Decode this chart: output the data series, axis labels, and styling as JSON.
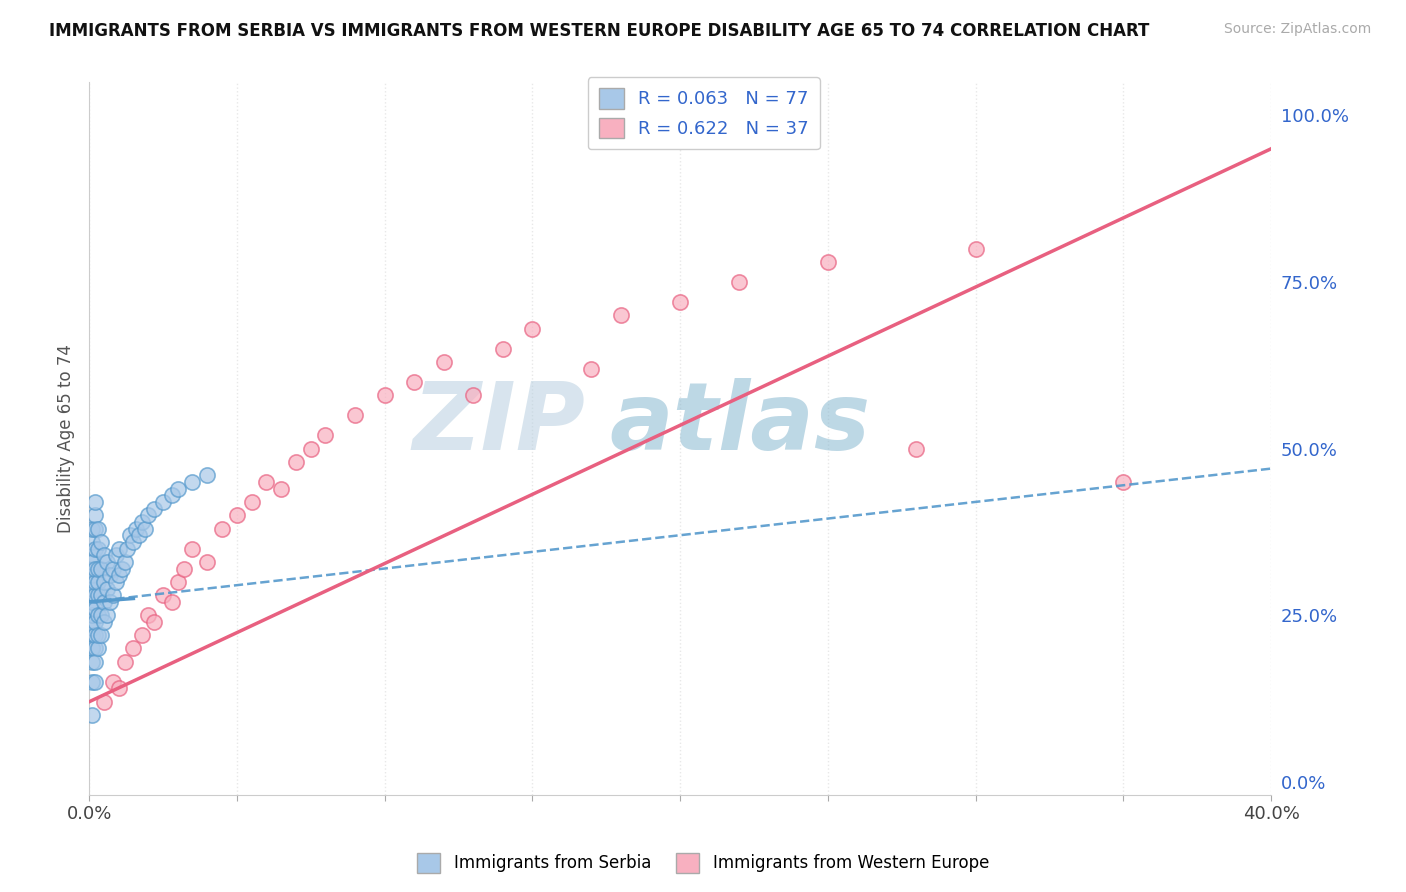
{
  "title": "IMMIGRANTS FROM SERBIA VS IMMIGRANTS FROM WESTERN EUROPE DISABILITY AGE 65 TO 74 CORRELATION CHART",
  "source": "Source: ZipAtlas.com",
  "ylabel": "Disability Age 65 to 74",
  "ylabel_right_ticks": [
    0.0,
    0.25,
    0.5,
    0.75,
    1.0
  ],
  "ylabel_right_labels": [
    "0.0%",
    "25.0%",
    "50.0%",
    "75.0%",
    "100.0%"
  ],
  "serbia_R": 0.063,
  "serbia_N": 77,
  "western_R": 0.622,
  "western_N": 37,
  "serbia_color": "#a8c8e8",
  "western_color": "#f8b0c0",
  "serbia_line_color": "#5599cc",
  "western_line_color": "#e86080",
  "legend_text_color": "#3366cc",
  "watermark_text": "ZIPatlas",
  "watermark_color_zip": "#b0c8e0",
  "watermark_color_atlas": "#80b0d0",
  "background_color": "#ffffff",
  "grid_color": "#e8e8e8",
  "serbia_x": [
    0.001,
    0.001,
    0.001,
    0.001,
    0.001,
    0.001,
    0.001,
    0.001,
    0.001,
    0.001,
    0.001,
    0.001,
    0.001,
    0.001,
    0.001,
    0.001,
    0.001,
    0.001,
    0.001,
    0.001,
    0.002,
    0.002,
    0.002,
    0.002,
    0.002,
    0.002,
    0.002,
    0.002,
    0.002,
    0.002,
    0.002,
    0.002,
    0.002,
    0.003,
    0.003,
    0.003,
    0.003,
    0.003,
    0.003,
    0.003,
    0.003,
    0.004,
    0.004,
    0.004,
    0.004,
    0.004,
    0.005,
    0.005,
    0.005,
    0.005,
    0.006,
    0.006,
    0.006,
    0.007,
    0.007,
    0.008,
    0.008,
    0.009,
    0.009,
    0.01,
    0.01,
    0.011,
    0.012,
    0.013,
    0.014,
    0.015,
    0.016,
    0.017,
    0.018,
    0.019,
    0.02,
    0.022,
    0.025,
    0.028,
    0.03,
    0.035,
    0.04
  ],
  "serbia_y": [
    0.2,
    0.22,
    0.24,
    0.26,
    0.28,
    0.3,
    0.32,
    0.34,
    0.36,
    0.38,
    0.15,
    0.18,
    0.2,
    0.23,
    0.25,
    0.27,
    0.29,
    0.31,
    0.33,
    0.1,
    0.2,
    0.22,
    0.24,
    0.26,
    0.28,
    0.3,
    0.32,
    0.35,
    0.38,
    0.4,
    0.15,
    0.18,
    0.42,
    0.2,
    0.22,
    0.25,
    0.28,
    0.3,
    0.32,
    0.35,
    0.38,
    0.22,
    0.25,
    0.28,
    0.32,
    0.36,
    0.24,
    0.27,
    0.3,
    0.34,
    0.25,
    0.29,
    0.33,
    0.27,
    0.31,
    0.28,
    0.32,
    0.3,
    0.34,
    0.31,
    0.35,
    0.32,
    0.33,
    0.35,
    0.37,
    0.36,
    0.38,
    0.37,
    0.39,
    0.38,
    0.4,
    0.41,
    0.42,
    0.43,
    0.44,
    0.45,
    0.46
  ],
  "western_x": [
    0.005,
    0.008,
    0.01,
    0.012,
    0.015,
    0.018,
    0.02,
    0.022,
    0.025,
    0.028,
    0.03,
    0.032,
    0.035,
    0.04,
    0.045,
    0.05,
    0.055,
    0.06,
    0.065,
    0.07,
    0.075,
    0.08,
    0.09,
    0.1,
    0.11,
    0.12,
    0.13,
    0.14,
    0.15,
    0.17,
    0.18,
    0.2,
    0.22,
    0.25,
    0.28,
    0.3,
    0.35
  ],
  "western_y": [
    0.12,
    0.15,
    0.14,
    0.18,
    0.2,
    0.22,
    0.25,
    0.24,
    0.28,
    0.27,
    0.3,
    0.32,
    0.35,
    0.33,
    0.38,
    0.4,
    0.42,
    0.45,
    0.44,
    0.48,
    0.5,
    0.52,
    0.55,
    0.58,
    0.6,
    0.63,
    0.58,
    0.65,
    0.68,
    0.62,
    0.7,
    0.72,
    0.75,
    0.78,
    0.5,
    0.8,
    0.45
  ],
  "xlim": [
    0.0,
    0.4
  ],
  "ylim": [
    -0.02,
    1.05
  ],
  "xtick_positions": [
    0.0,
    0.05,
    0.1,
    0.15,
    0.2,
    0.25,
    0.3,
    0.35,
    0.4
  ],
  "figsize": [
    14.06,
    8.92
  ],
  "dpi": 100
}
